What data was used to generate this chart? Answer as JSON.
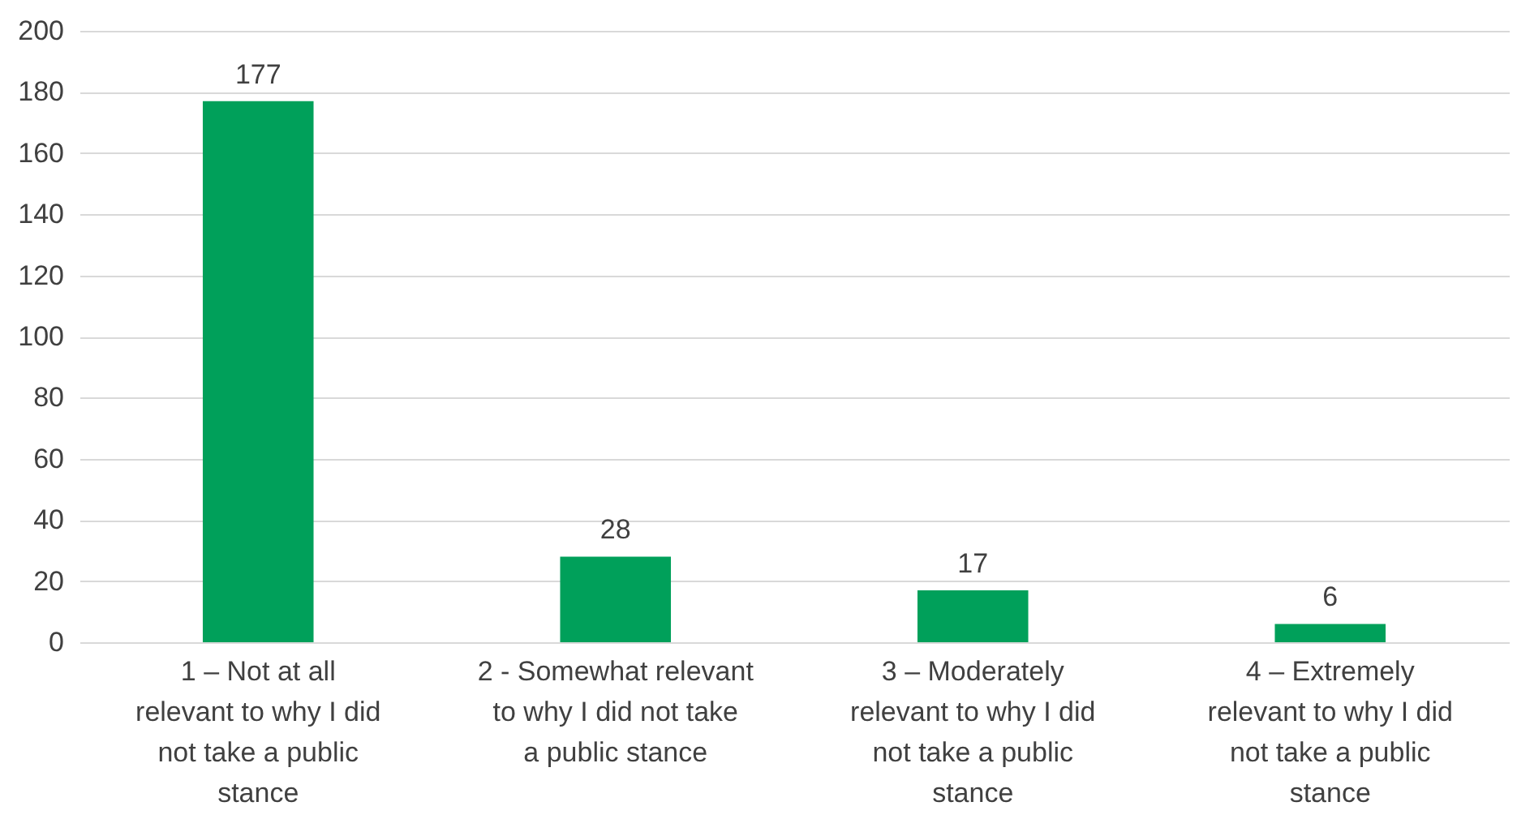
{
  "chart_data": {
    "type": "bar",
    "categories": [
      "1 – Not at all relevant to why I did not take a public stance",
      "2 - Somewhat relevant to why I did not take a public stance",
      "3 – Moderately relevant to why I did not take a public stance",
      "4 – Extremely relevant to why I did not take a public stance"
    ],
    "values": [
      177,
      28,
      17,
      6
    ],
    "color": "#00a05a",
    "ylim": [
      0,
      200
    ],
    "yticks": [
      0,
      20,
      40,
      60,
      80,
      100,
      120,
      140,
      160,
      180,
      200
    ],
    "grid": "y",
    "data_labels": true
  }
}
